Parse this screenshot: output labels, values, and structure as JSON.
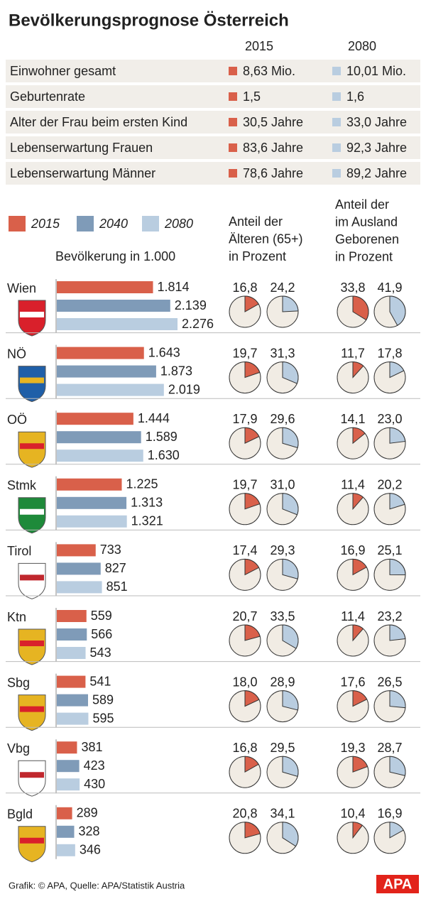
{
  "title": "Bevölkerungsprognose Österreich",
  "summary": {
    "columns": [
      "2015",
      "2080"
    ],
    "rows": [
      {
        "label": "Einwohner gesamt",
        "values": [
          "8,63 Mio.",
          "10,01 Mio."
        ]
      },
      {
        "label": "Geburtenrate",
        "values": [
          "1,5",
          "1,6"
        ]
      },
      {
        "label": "Alter der Frau beim ersten Kind",
        "values": [
          "30,5 Jahre",
          "33,0 Jahre"
        ]
      },
      {
        "label": "Lebenserwartung Frauen",
        "values": [
          "83,6 Jahre",
          "92,3 Jahre"
        ]
      },
      {
        "label": "Lebenserwartung Männer",
        "values": [
          "78,6 Jahre",
          "89,2 Jahre"
        ]
      }
    ]
  },
  "chart_data": [
    {
      "type": "bar",
      "title": "Bevölkerung in 1.000",
      "categories": [
        "Wien",
        "NÖ",
        "OÖ",
        "Stmk",
        "Tirol",
        "Ktn",
        "Sbg",
        "Vbg",
        "Bgld"
      ],
      "series": [
        {
          "name": "2015",
          "color": "#d9604a",
          "values": [
            1814,
            1643,
            1444,
            1225,
            733,
            559,
            541,
            381,
            289
          ],
          "value_labels": [
            "1.814",
            "1.643",
            "1.444",
            "1.225",
            "733",
            "559",
            "541",
            "381",
            "289"
          ]
        },
        {
          "name": "2040",
          "color": "#7f9bb8",
          "values": [
            2139,
            1873,
            1589,
            1313,
            827,
            566,
            589,
            423,
            328
          ],
          "value_labels": [
            "2.139",
            "1.873",
            "1.589",
            "1.313",
            "827",
            "566",
            "589",
            "423",
            "328"
          ]
        },
        {
          "name": "2080",
          "color": "#b9cde0",
          "values": [
            2276,
            2019,
            1630,
            1321,
            851,
            543,
            595,
            430,
            346
          ],
          "value_labels": [
            "2.276",
            "2.019",
            "1.630",
            "1.321",
            "851",
            "543",
            "595",
            "430",
            "346"
          ]
        }
      ]
    },
    {
      "type": "pie",
      "title": [
        "Anteil der",
        "Älteren (65+)",
        "in Prozent"
      ],
      "series": [
        {
          "color": "#d9604a",
          "values": [
            16.8,
            19.7,
            17.9,
            19.7,
            17.4,
            20.7,
            18.0,
            16.8,
            20.8
          ],
          "value_labels": [
            "16,8",
            "19,7",
            "17,9",
            "19,7",
            "17,4",
            "20,7",
            "18,0",
            "16,8",
            "20,8"
          ]
        },
        {
          "color": "#b9cde0",
          "values": [
            24.2,
            31.3,
            29.6,
            31.0,
            29.3,
            33.5,
            28.9,
            29.5,
            34.1
          ],
          "value_labels": [
            "24,2",
            "31,3",
            "29,6",
            "31,0",
            "29,3",
            "33,5",
            "28,9",
            "29,5",
            "34,1"
          ]
        }
      ]
    },
    {
      "type": "pie",
      "title": [
        "Anteil der",
        "im Ausland",
        "Geborenen",
        "in Prozent"
      ],
      "series": [
        {
          "color": "#d9604a",
          "values": [
            33.8,
            11.7,
            14.1,
            11.4,
            16.9,
            11.4,
            17.6,
            19.3,
            10.4
          ],
          "value_labels": [
            "33,8",
            "11,7",
            "14,1",
            "11,4",
            "16,9",
            "11,4",
            "17,6",
            "19,3",
            "10,4"
          ]
        },
        {
          "color": "#b9cde0",
          "values": [
            41.9,
            17.8,
            23.0,
            20.2,
            25.1,
            23.2,
            26.5,
            28.7,
            16.9
          ],
          "value_labels": [
            "41,9",
            "17,8",
            "23,0",
            "20,2",
            "25,1",
            "23,2",
            "26,5",
            "28,7",
            "16,9"
          ]
        }
      ]
    }
  ],
  "source": "Grafik: © APA, Quelle: APA/Statistik Austria",
  "logo": "APA"
}
